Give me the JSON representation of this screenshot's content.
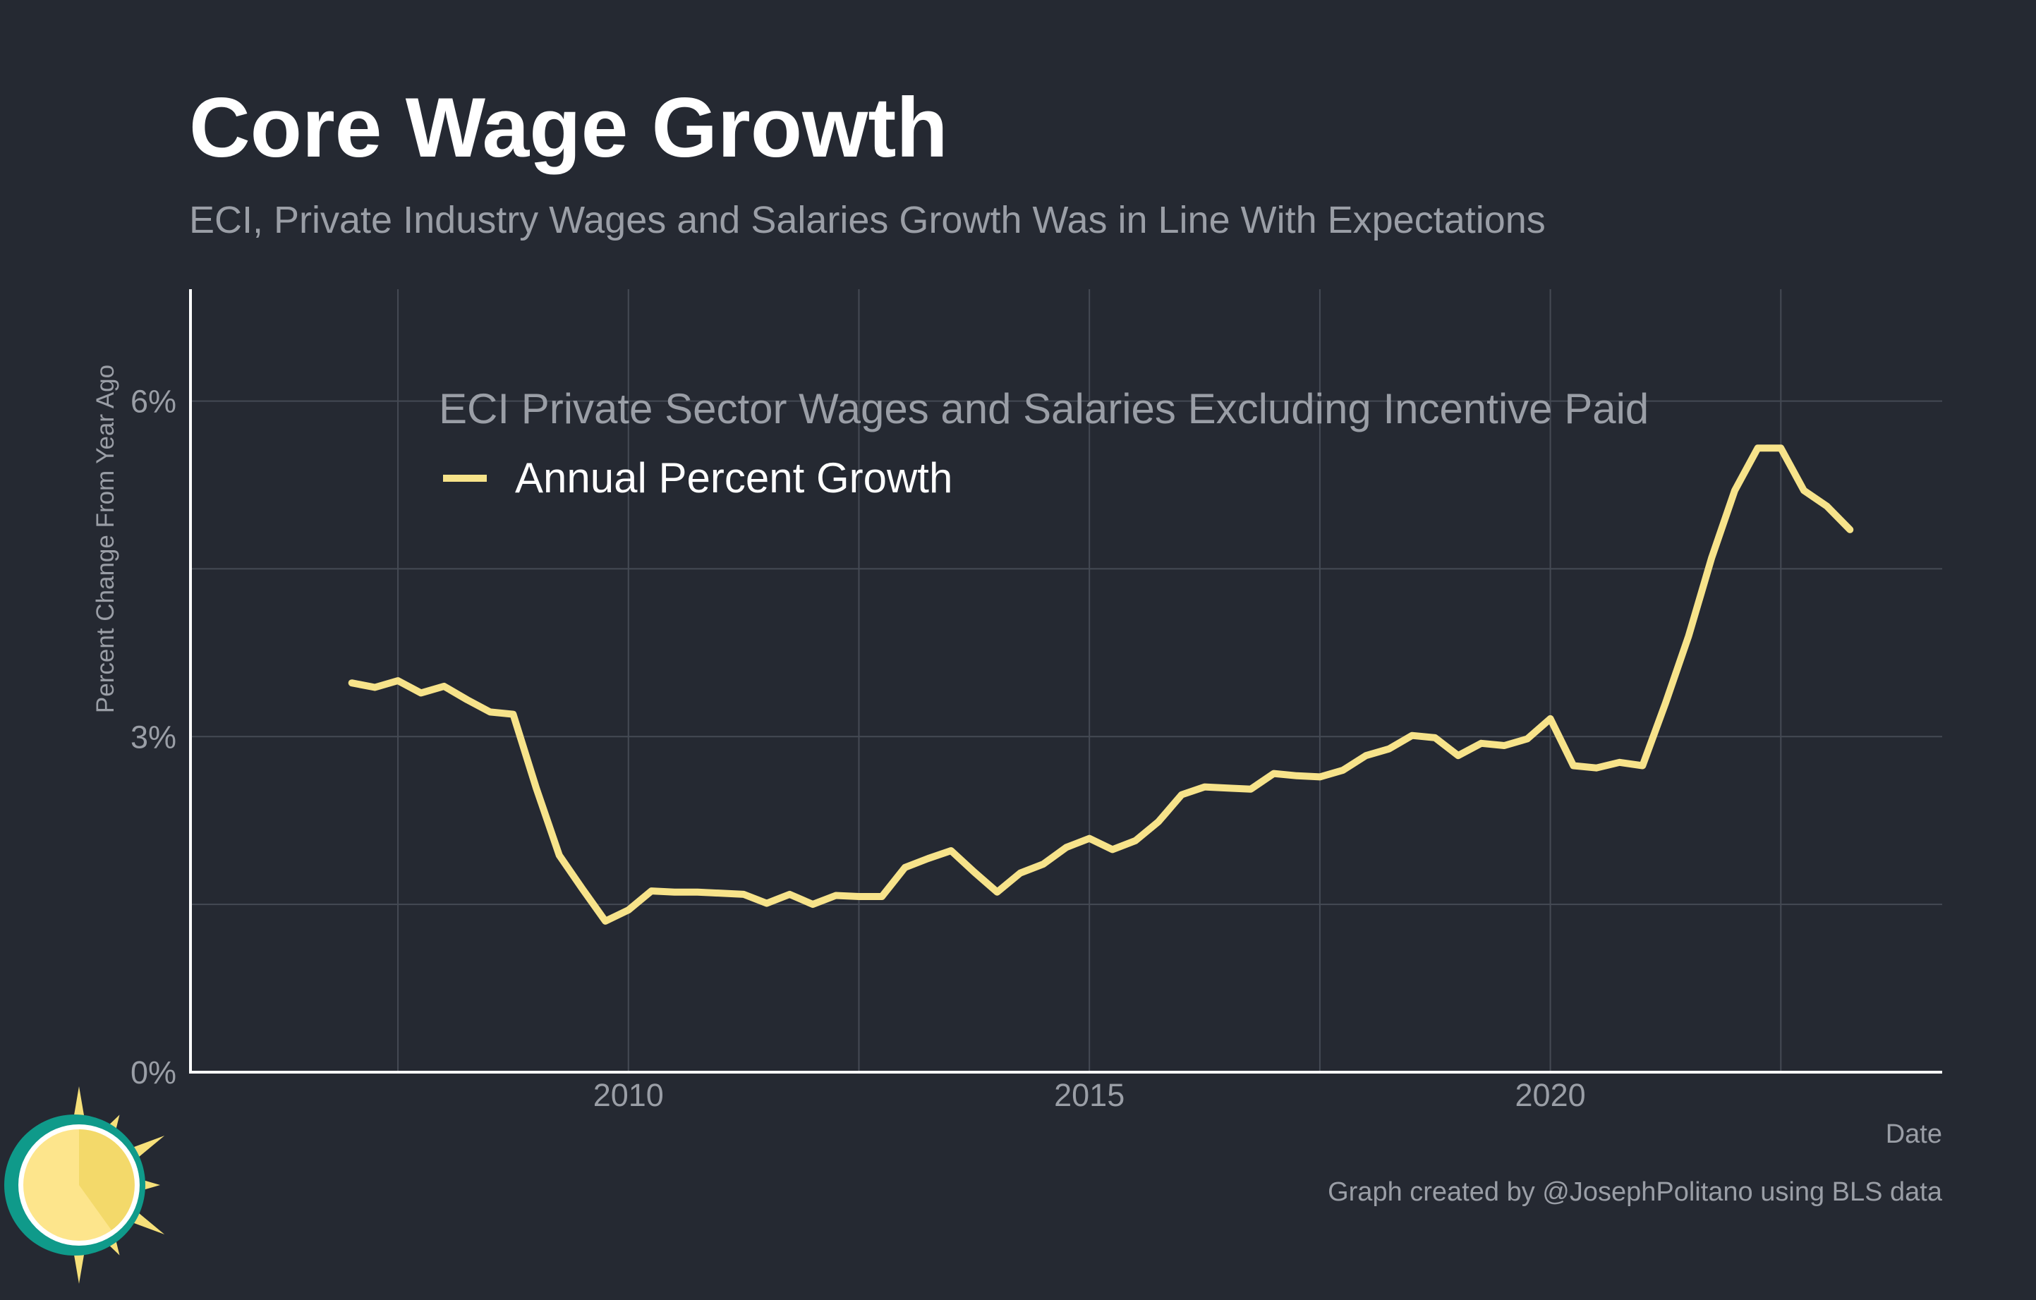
{
  "title": "Core Wage Growth",
  "subtitle": "ECI, Private Industry Wages and Salaries Growth Was in Line With Expectations",
  "caption": "Graph created by @JosephPolitano using BLS data",
  "colors": {
    "background": "#252932",
    "line": "#f7e38a",
    "logo_teal": "#0f9a8a",
    "logo_sun": "#f6e07a"
  },
  "icons": {
    "logo": "sun-logo-icon"
  },
  "chart_data": {
    "type": "line",
    "title": "Core Wage Growth",
    "subtitle": "ECI, Private Industry Wages and Salaries Growth Was in Line With Expectations",
    "xlabel": "Date",
    "ylabel": "Percent Change From Year Ago",
    "xlim": [
      2005.25,
      2024.25
    ],
    "ylim": [
      0,
      7
    ],
    "grid": true,
    "x_ticks": [
      {
        "value": 2010,
        "label": "2010"
      },
      {
        "value": 2015,
        "label": "2015"
      },
      {
        "value": 2020,
        "label": "2020"
      }
    ],
    "y_ticks": [
      {
        "value": 0,
        "label": "0%"
      },
      {
        "value": 3,
        "label": "3%"
      },
      {
        "value": 6,
        "label": "6%"
      }
    ],
    "legend": {
      "title": "ECI Private Sector Wages and Salaries Excluding Incentive Paid",
      "position": "top-left"
    },
    "series": [
      {
        "name": "Annual Percent Growth",
        "color": "#f7e38a",
        "points": [
          [
            2007.0,
            3.48
          ],
          [
            2007.25,
            3.44
          ],
          [
            2007.5,
            3.5
          ],
          [
            2007.75,
            3.39
          ],
          [
            2008.0,
            3.45
          ],
          [
            2008.25,
            3.33
          ],
          [
            2008.5,
            3.22
          ],
          [
            2008.75,
            3.2
          ],
          [
            2009.0,
            2.54
          ],
          [
            2009.25,
            1.94
          ],
          [
            2009.5,
            1.64
          ],
          [
            2009.75,
            1.35
          ],
          [
            2010.0,
            1.45
          ],
          [
            2010.25,
            1.62
          ],
          [
            2010.5,
            1.61
          ],
          [
            2010.75,
            1.61
          ],
          [
            2011.0,
            1.6
          ],
          [
            2011.25,
            1.59
          ],
          [
            2011.5,
            1.51
          ],
          [
            2011.75,
            1.59
          ],
          [
            2012.0,
            1.5
          ],
          [
            2012.25,
            1.58
          ],
          [
            2012.5,
            1.57
          ],
          [
            2012.75,
            1.57
          ],
          [
            2013.0,
            1.83
          ],
          [
            2013.25,
            1.91
          ],
          [
            2013.5,
            1.98
          ],
          [
            2013.75,
            1.79
          ],
          [
            2014.0,
            1.61
          ],
          [
            2014.25,
            1.78
          ],
          [
            2014.5,
            1.86
          ],
          [
            2014.75,
            2.01
          ],
          [
            2015.0,
            2.09
          ],
          [
            2015.25,
            1.99
          ],
          [
            2015.5,
            2.07
          ],
          [
            2015.75,
            2.24
          ],
          [
            2016.0,
            2.48
          ],
          [
            2016.25,
            2.55
          ],
          [
            2016.5,
            2.54
          ],
          [
            2016.75,
            2.53
          ],
          [
            2017.0,
            2.67
          ],
          [
            2017.25,
            2.65
          ],
          [
            2017.5,
            2.64
          ],
          [
            2017.75,
            2.7
          ],
          [
            2018.0,
            2.83
          ],
          [
            2018.25,
            2.89
          ],
          [
            2018.5,
            3.01
          ],
          [
            2018.75,
            2.99
          ],
          [
            2019.0,
            2.83
          ],
          [
            2019.25,
            2.94
          ],
          [
            2019.5,
            2.92
          ],
          [
            2019.75,
            2.98
          ],
          [
            2020.0,
            3.16
          ],
          [
            2020.25,
            2.74
          ],
          [
            2020.5,
            2.72
          ],
          [
            2020.75,
            2.77
          ],
          [
            2021.0,
            2.74
          ],
          [
            2021.25,
            3.3
          ],
          [
            2021.5,
            3.9
          ],
          [
            2021.75,
            4.6
          ],
          [
            2022.0,
            5.2
          ],
          [
            2022.25,
            5.58
          ],
          [
            2022.5,
            5.58
          ],
          [
            2022.75,
            5.2
          ],
          [
            2023.0,
            5.06
          ],
          [
            2023.25,
            4.85
          ]
        ]
      }
    ]
  }
}
